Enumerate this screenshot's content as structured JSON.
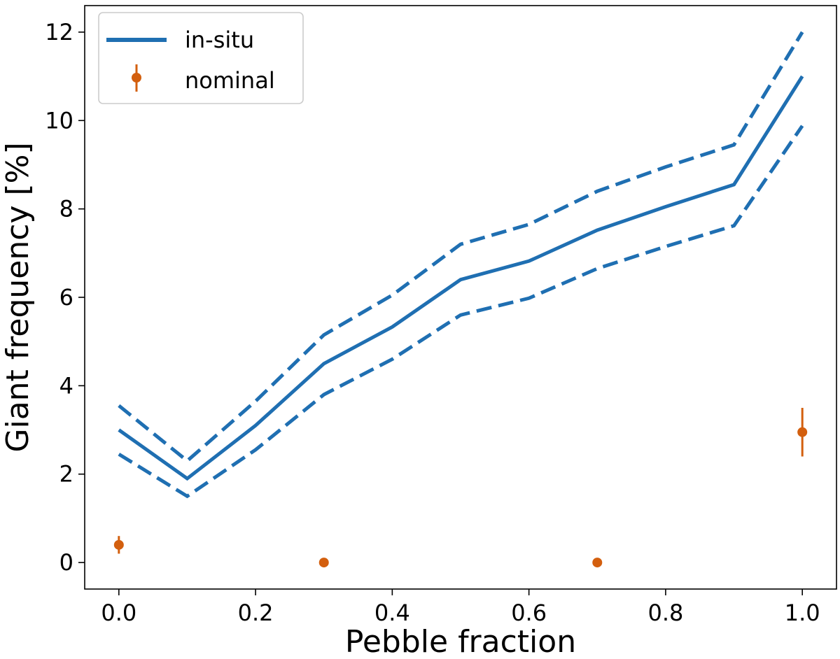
{
  "chart_data": {
    "type": "line",
    "xlabel": "Pebble fraction",
    "ylabel": "Giant frequency [%]",
    "xlim": [
      -0.05,
      1.05
    ],
    "ylim": [
      -0.6,
      12.6
    ],
    "x_ticks": [
      0.0,
      0.2,
      0.4,
      0.6,
      0.8,
      1.0
    ],
    "x_tick_labels": [
      "0.0",
      "0.2",
      "0.4",
      "0.6",
      "0.8",
      "1.0"
    ],
    "y_ticks": [
      0,
      2,
      4,
      6,
      8,
      10,
      12
    ],
    "y_tick_labels": [
      "0",
      "2",
      "4",
      "6",
      "8",
      "10",
      "12"
    ],
    "grid": false,
    "legend_position": "top-left",
    "series": [
      {
        "name": "in-situ",
        "style": "solid",
        "color": "#1f6fb2",
        "x": [
          0.0,
          0.1,
          0.2,
          0.3,
          0.4,
          0.5,
          0.6,
          0.7,
          0.8,
          0.9,
          1.0
        ],
        "values": [
          3.0,
          1.9,
          3.1,
          4.5,
          5.33,
          6.4,
          6.82,
          7.52,
          8.05,
          8.55,
          11.0
        ]
      },
      {
        "style": "dashed",
        "color": "#1f6fb2",
        "x": [
          0.0,
          0.1,
          0.2,
          0.3,
          0.4,
          0.5,
          0.6,
          0.7,
          0.8,
          0.9,
          1.0
        ],
        "values": [
          3.55,
          2.3,
          3.65,
          5.15,
          6.05,
          7.2,
          7.65,
          8.4,
          8.95,
          9.45,
          12.0
        ]
      },
      {
        "style": "dashed",
        "color": "#1f6fb2",
        "x": [
          0.0,
          0.1,
          0.2,
          0.3,
          0.4,
          0.5,
          0.6,
          0.7,
          0.8,
          0.9,
          1.0
        ],
        "values": [
          2.45,
          1.5,
          2.55,
          3.8,
          4.6,
          5.6,
          5.98,
          6.65,
          7.15,
          7.62,
          9.88
        ]
      },
      {
        "name": "nominal",
        "style": "errorbar",
        "color": "#d35f0e",
        "x": [
          0.0,
          0.3,
          0.7,
          1.0
        ],
        "values": [
          0.4,
          0.0,
          0.0,
          2.95
        ],
        "errors": [
          0.2,
          0.0,
          0.0,
          0.55
        ]
      }
    ]
  }
}
